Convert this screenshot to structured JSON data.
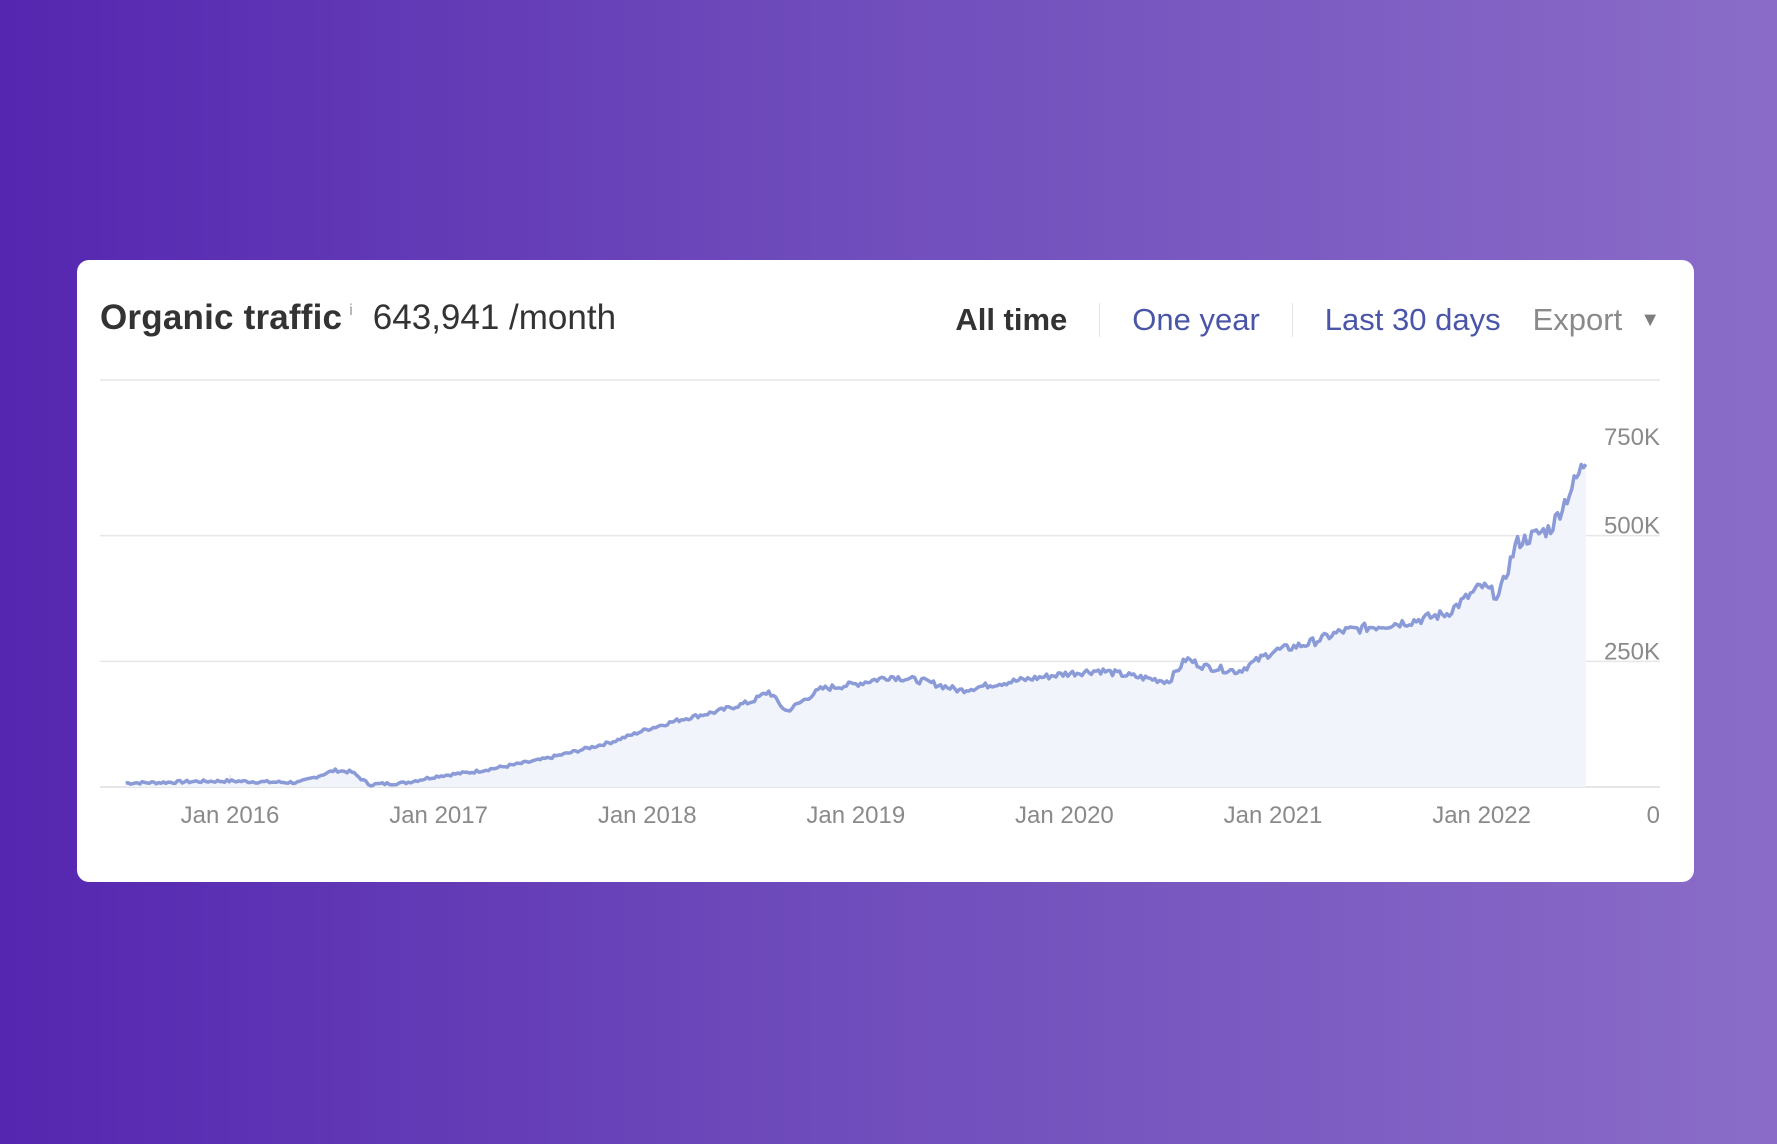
{
  "header": {
    "title": "Organic traffic",
    "info_icon": "i",
    "total": "643,941 /month"
  },
  "filters": [
    {
      "label": "All time",
      "active": true
    },
    {
      "label": "One year",
      "active": false
    },
    {
      "label": "Last 30 days",
      "active": false
    }
  ],
  "export": {
    "label": "Export",
    "icon": "caret-down-icon",
    "glyph": "▼"
  },
  "colors": {
    "line": "#8b9bd8",
    "area": "#f2f4fb",
    "grid": "#e6e6e6",
    "link": "#4a55a8"
  },
  "chart_data": {
    "type": "area",
    "title": "",
    "xlabel": "",
    "ylabel": "",
    "x_ticks": [
      "Jan 2016",
      "Jan 2017",
      "Jan 2018",
      "Jan 2019",
      "Jan 2020",
      "Jan 2021",
      "Jan 2022"
    ],
    "y_ticks": [
      "0",
      "250K",
      "500K",
      "750K"
    ],
    "ylim": [
      0,
      750000
    ],
    "grid": true,
    "series": [
      {
        "x": [
          "2015-07",
          "2015-09",
          "2015-11",
          "2016-01",
          "2016-03",
          "2016-05",
          "2016-07",
          "2016-08",
          "2016-09",
          "2016-11",
          "2017-01",
          "2017-03",
          "2017-05",
          "2017-07",
          "2017-09",
          "2017-11",
          "2018-01",
          "2018-03",
          "2018-05",
          "2018-07",
          "2018-08",
          "2018-09",
          "2018-11",
          "2019-01",
          "2019-03",
          "2019-05",
          "2019-07",
          "2019-09",
          "2019-11",
          "2020-01",
          "2020-03",
          "2020-05",
          "2020-07",
          "2020-08",
          "2020-09",
          "2020-11",
          "2021-01",
          "2021-03",
          "2021-05",
          "2021-07",
          "2021-09",
          "2021-11",
          "2022-01",
          "2022-02",
          "2022-03",
          "2022-05",
          "2022-07"
        ],
        "values": [
          8000,
          9000,
          11000,
          12000,
          10000,
          9000,
          33000,
          30000,
          5000,
          8000,
          22000,
          30000,
          42000,
          55000,
          72000,
          90000,
          115000,
          135000,
          150000,
          170000,
          190000,
          150000,
          195000,
          205000,
          220000,
          210000,
          192000,
          205000,
          215000,
          225000,
          232000,
          220000,
          210000,
          255000,
          240000,
          230000,
          270000,
          285000,
          310000,
          320000,
          330000,
          345000,
          400000,
          380000,
          485000,
          515000,
          650000
        ]
      }
    ]
  }
}
